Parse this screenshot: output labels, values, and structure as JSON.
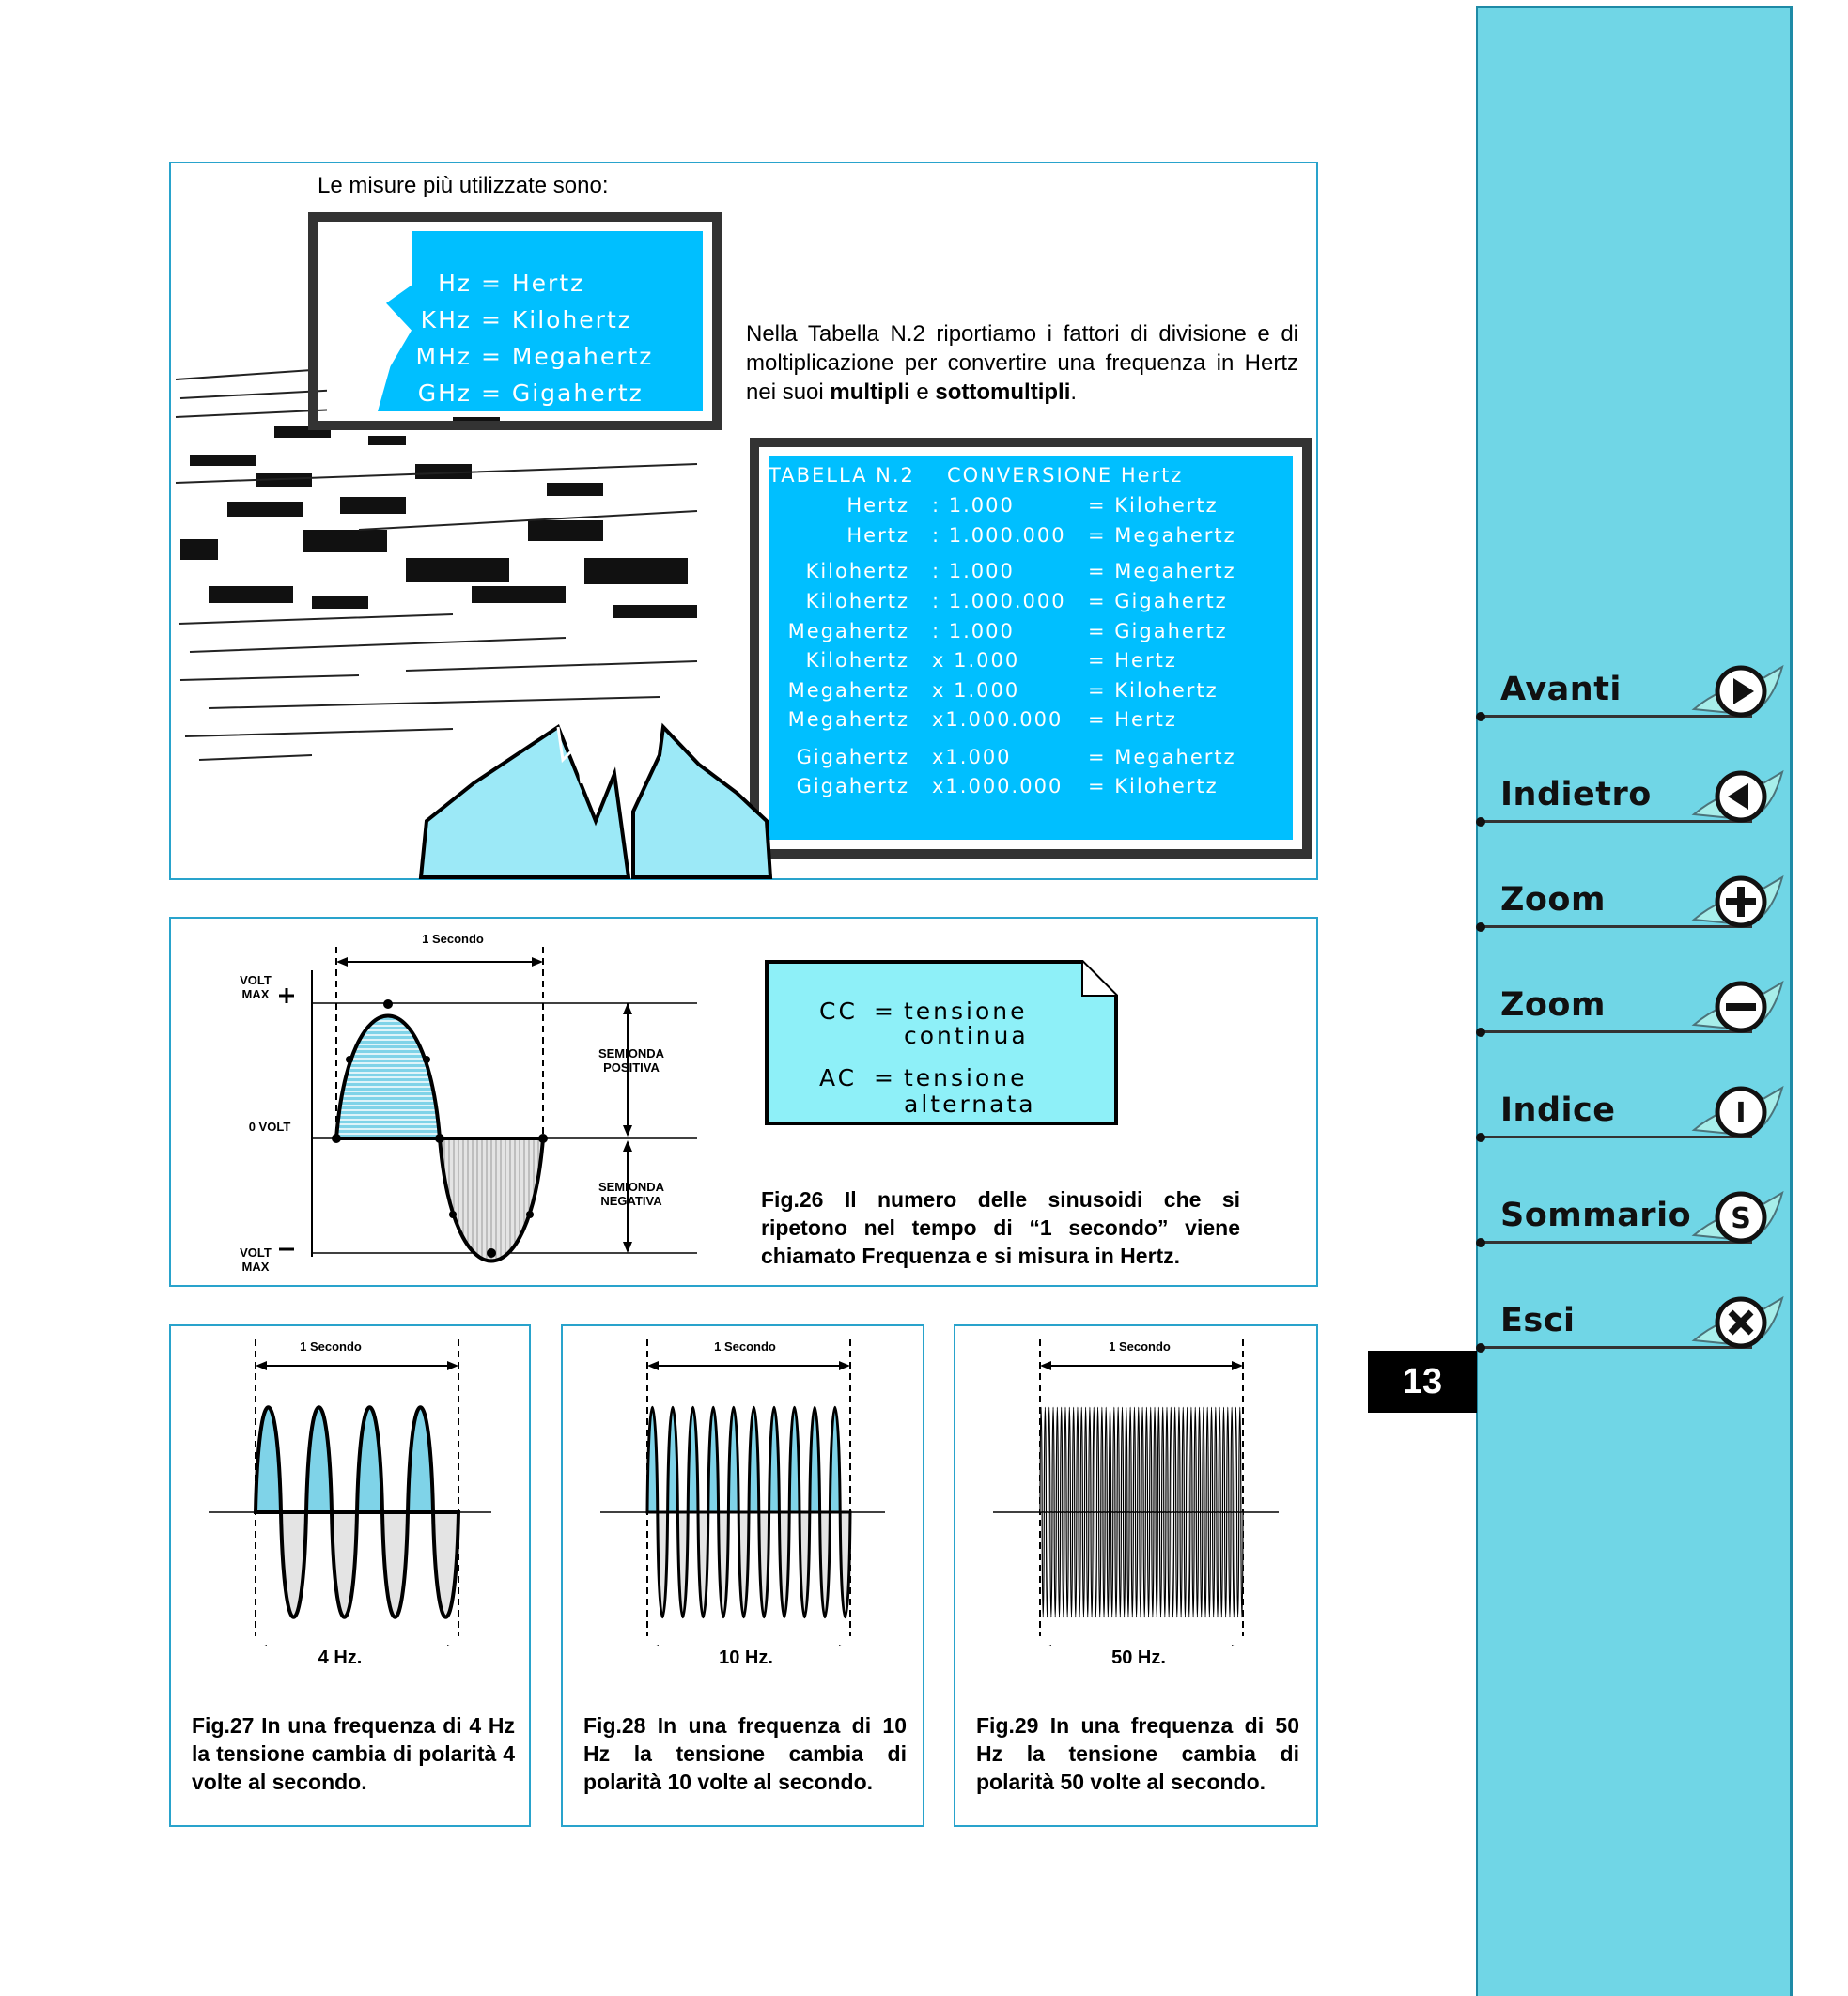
{
  "page_number": "13",
  "units_box": {
    "heading": "Le misure più utilizzate sono:",
    "units": [
      {
        "abbr": "Hz",
        "eq": "=",
        "name": "Hertz"
      },
      {
        "abbr": "KHz",
        "eq": "=",
        "name": "Kilohertz"
      },
      {
        "abbr": "MHz",
        "eq": "=",
        "name": "Megahertz"
      },
      {
        "abbr": "GHz",
        "eq": "=",
        "name": "Gigahertz"
      }
    ],
    "paragraph_part1": "Nella Tabella N.2 riportiamo i fattori di divisione e di moltiplicazione per convertire una frequenza in Hertz nei suoi ",
    "paragraph_bold1": "multipli",
    "paragraph_part2": " e ",
    "paragraph_bold2": "sottomultipli",
    "paragraph_part3": "."
  },
  "table": {
    "title_left": "TABELLA N.2",
    "title_right": "CONVERSIONE Hertz",
    "rows": [
      {
        "from": "Hertz",
        "op": ": 1.000",
        "to": "= Kilohertz"
      },
      {
        "from": "Hertz",
        "op": ": 1.000.000",
        "to": "= Megahertz"
      },
      {
        "from": "Kilohertz",
        "op": ": 1.000",
        "to": "= Megahertz"
      },
      {
        "from": "Kilohertz",
        "op": ": 1.000.000",
        "to": "= Gigahertz"
      },
      {
        "from": "Megahertz",
        "op": ": 1.000",
        "to": "= Gigahertz"
      },
      {
        "from": "Kilohertz",
        "op": "x 1.000",
        "to": "= Hertz"
      },
      {
        "from": "Megahertz",
        "op": "x 1.000",
        "to": "= Kilohertz"
      },
      {
        "from": "Megahertz",
        "op": "x1.000.000",
        "to": "= Hertz"
      },
      {
        "from": "Gigahertz",
        "op": "x1.000",
        "to": "= Megahertz"
      },
      {
        "from": "Gigahertz",
        "op": "x1.000.000",
        "to": "= Kilohertz"
      }
    ]
  },
  "fig26": {
    "one_second": "1 Secondo",
    "volt_max_plus_1": "VOLT",
    "volt_max_plus_2": "MAX",
    "zero_volt": "0 VOLT",
    "volt_max_minus_1": "VOLT",
    "volt_max_minus_2": "MAX",
    "semionda_pos_1": "SEMIONDA",
    "semionda_pos_2": "POSITIVA",
    "semionda_neg_1": "SEMIONDA",
    "semionda_neg_2": "NEGATIVA",
    "note_cc_abbr": "CC",
    "note_cc_eq": "=",
    "note_cc_1": "tensione",
    "note_cc_2": "continua",
    "note_ac_abbr": "AC",
    "note_ac_eq": "=",
    "note_ac_1": "tensione",
    "note_ac_2": "alternata",
    "caption": "Fig.26 Il numero delle sinusoidi che si ripetono nel tempo di “1 secondo” viene chiamato Frequenza e si misura in Hertz."
  },
  "fig27": {
    "one_second": "1 Secondo",
    "freq_label": "4 Hz.",
    "cycles": 4,
    "caption": "Fig.27 In una frequenza di 4 Hz la tensione cambia di polarità 4 volte al secondo."
  },
  "fig28": {
    "one_second": "1 Secondo",
    "freq_label": "10 Hz.",
    "cycles": 10,
    "caption": "Fig.28 In una frequenza di 10 Hz la tensione cambia di polarità 10 volte al secondo."
  },
  "fig29": {
    "one_second": "1 Secondo",
    "freq_label": "50 Hz.",
    "cycles": 50,
    "caption": "Fig.29 In una frequenza di 50 Hz la tensione cambia di polarità 50 volte al secondo."
  },
  "nav": {
    "avanti": "Avanti",
    "indietro": "Indietro",
    "zoom_in": "Zoom",
    "zoom_out": "Zoom",
    "indice": "Indice",
    "sommario": "Sommario",
    "esci": "Esci",
    "icon_letter_indice": "I",
    "icon_letter_sommario": "S"
  },
  "colors": {
    "accent_blue": "#00bfff",
    "sidebar": "#70d6e6",
    "border": "#29a3cc",
    "note_fill": "#8ef0f8"
  }
}
